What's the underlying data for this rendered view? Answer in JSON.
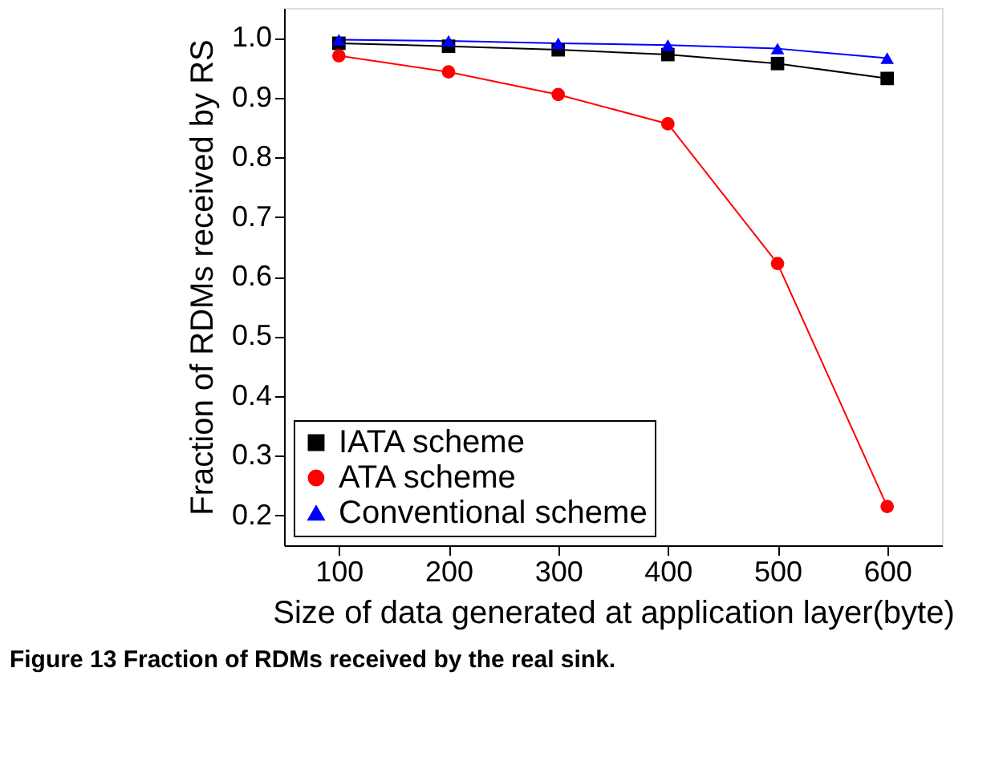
{
  "chart_data": {
    "type": "line",
    "xlabel": "Size of data generated at application layer(byte)",
    "ylabel": "Fraction of RDMs received by RS",
    "x": [
      100,
      200,
      300,
      400,
      500,
      600
    ],
    "series": [
      {
        "name": "IATA scheme",
        "color": "#000000",
        "marker": "square",
        "values": [
          0.991,
          0.986,
          0.98,
          0.972,
          0.957,
          0.932
        ]
      },
      {
        "name": "ATA scheme",
        "color": "#ff0000",
        "marker": "circle",
        "values": [
          0.97,
          0.943,
          0.905,
          0.856,
          0.622,
          0.215
        ]
      },
      {
        "name": "Conventional scheme",
        "color": "#0000ff",
        "marker": "triangle",
        "values": [
          0.997,
          0.995,
          0.991,
          0.988,
          0.982,
          0.966
        ]
      }
    ],
    "xlim": [
      50,
      650
    ],
    "xticks": [
      100,
      200,
      300,
      400,
      500,
      600
    ],
    "ylim": [
      0.15,
      1.05
    ],
    "yticks": [
      0.2,
      0.3,
      0.4,
      0.5,
      0.6,
      0.7,
      0.8,
      0.9,
      {
        "value": 1,
        "label": "1.0"
      }
    ],
    "grid": false,
    "legend": "bottom left",
    "line_style": "solid",
    "annotations": [
      "Figure 13 Fraction of RDMs received by the real sink."
    ]
  }
}
